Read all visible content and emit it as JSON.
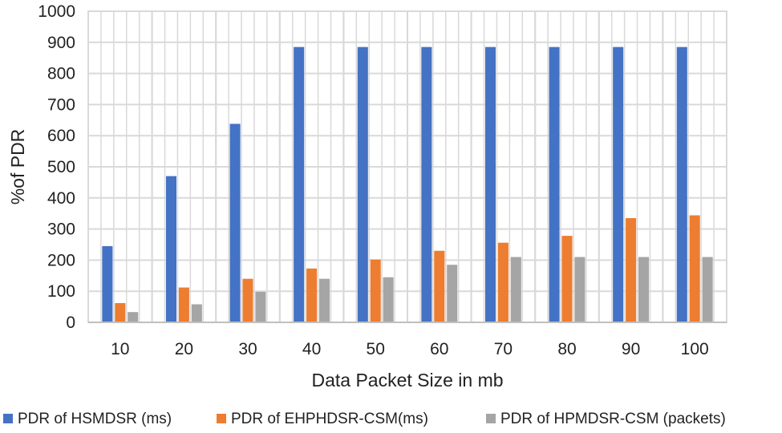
{
  "chart_data": {
    "type": "bar",
    "title": "",
    "xlabel": "Data Packet Size in mb",
    "ylabel": "%of PDR",
    "ylim": [
      0,
      1000
    ],
    "yticks": [
      0,
      100,
      200,
      300,
      400,
      500,
      600,
      700,
      800,
      900,
      1000
    ],
    "categories": [
      "10",
      "20",
      "30",
      "40",
      "50",
      "60",
      "70",
      "80",
      "90",
      "100"
    ],
    "series": [
      {
        "name": "PDR of HSMDSR (ms)",
        "color": "#4472C4",
        "values": [
          245,
          470,
          638,
          885,
          885,
          885,
          885,
          885,
          885,
          885
        ]
      },
      {
        "name": "PDR of EHPHDSR-CSM(ms)",
        "color": "#ED7D31",
        "values": [
          62,
          112,
          140,
          173,
          202,
          230,
          256,
          278,
          335,
          344
        ]
      },
      {
        "name": "PDR of HPMDSR-CSM (packets)",
        "color": "#A5A5A5",
        "values": [
          33,
          58,
          98,
          140,
          145,
          185,
          210,
          210,
          210,
          210
        ]
      }
    ],
    "grid": "vertical and horizontal",
    "legend_position": "bottom"
  }
}
